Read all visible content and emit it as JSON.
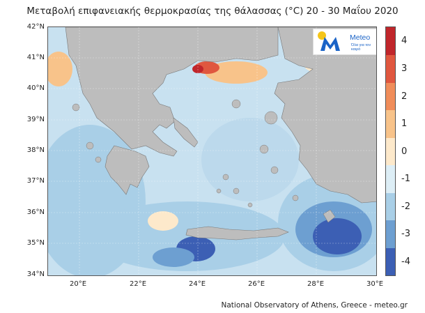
{
  "title": "Μεταβολή επιφανειακής θερμοκρασίας της θάλασσας (°C) 20 - 30 Μαΐου 2020",
  "latitude_labels": [
    "42°N",
    "41°N",
    "40°N",
    "39°N",
    "38°N",
    "37°N",
    "36°N",
    "35°N",
    "34°N"
  ],
  "longitude_labels": [
    "20°E",
    "22°E",
    "24°E",
    "26°E",
    "28°E",
    "30°E"
  ],
  "colorbar": {
    "ticks": [
      "4",
      "3",
      "2",
      "1",
      "0",
      "-1",
      "-2",
      "-3",
      "-4"
    ],
    "colors": [
      "#c0262b",
      "#e0573f",
      "#f08d5a",
      "#f8c38a",
      "#fde9cb",
      "#ddeef6",
      "#a9cfe7",
      "#6d9fd1",
      "#3c5fb4"
    ]
  },
  "logo": {
    "brand": "Meteo",
    "tagline": "Όλα για τον καιρό"
  },
  "footer": "National Observatory of Athens, Greece - meteo.gr",
  "colors": {
    "land": "#bdbdbd",
    "sea_base": "#c8e1f0",
    "warm": "#f8c38a",
    "hot": "#e0573f",
    "cold": "#3c5fb4"
  }
}
